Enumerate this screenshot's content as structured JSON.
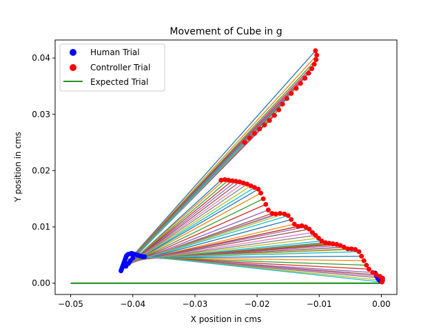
{
  "chart_data": {
    "type": "scatter",
    "title": "Movement of Cube in g",
    "xlabel": "X position in cms",
    "ylabel": "Y position in cms",
    "xlim": [
      -0.0525,
      0.0025
    ],
    "ylim": [
      -0.002,
      0.0432
    ],
    "x_ticks": [
      -0.05,
      -0.04,
      -0.03,
      -0.02,
      -0.01,
      0.0
    ],
    "y_ticks": [
      0.0,
      0.01,
      0.02,
      0.03,
      0.04
    ],
    "x_tick_labels": [
      "−0.05",
      "−0.04",
      "−0.03",
      "−0.02",
      "−0.01",
      "0.00"
    ],
    "y_tick_labels": [
      "0.00",
      "0.01",
      "0.02",
      "0.03",
      "0.04"
    ],
    "grid": false,
    "legend_position": "top-left",
    "legend": [
      {
        "label": "Human Trial",
        "kind": "marker",
        "color": "#0000ff"
      },
      {
        "label": "Controller Trial",
        "kind": "marker",
        "color": "#ff0000"
      },
      {
        "label": "Expected Trial",
        "kind": "line",
        "color": "#008000"
      }
    ],
    "line_colors": [
      "#1f77b4",
      "#ff7f0e",
      "#2ca02c",
      "#d62728",
      "#9467bd",
      "#8c564b",
      "#e377c2",
      "#7f7f7f",
      "#bcbd22",
      "#17becf"
    ],
    "human_trial": {
      "color": "#0000ff",
      "points": [
        [
          -0.0419,
          0.0022
        ],
        [
          -0.0418,
          0.0025
        ],
        [
          -0.0417,
          0.0028
        ],
        [
          -0.0416,
          0.0031
        ],
        [
          -0.0415,
          0.0034
        ],
        [
          -0.0414,
          0.0037
        ],
        [
          -0.0413,
          0.004
        ],
        [
          -0.0412,
          0.0043
        ],
        [
          -0.0411,
          0.0046
        ],
        [
          -0.041,
          0.0049
        ],
        [
          -0.0408,
          0.0051
        ],
        [
          -0.0405,
          0.0052
        ],
        [
          -0.0402,
          0.0053
        ],
        [
          -0.0399,
          0.0052
        ],
        [
          -0.0396,
          0.0051
        ],
        [
          -0.0393,
          0.005
        ],
        [
          -0.039,
          0.0049
        ],
        [
          -0.0387,
          0.0048
        ],
        [
          -0.0384,
          0.0047
        ],
        [
          -0.0381,
          0.0047
        ],
        [
          -0.0411,
          0.003
        ],
        [
          -0.0407,
          0.0035
        ],
        [
          -0.0404,
          0.004
        ],
        [
          -0.04,
          0.0045
        ],
        [
          -0.001,
          0.0018
        ],
        [
          -0.0008,
          0.0013
        ],
        [
          -0.0006,
          0.0009
        ],
        [
          -0.0004,
          0.0006
        ],
        [
          -0.0002,
          0.0004
        ],
        [
          0.0,
          0.0003
        ]
      ]
    },
    "controller_trial": {
      "color": "#ff0000",
      "points": [
        [
          -0.0106,
          0.0413
        ],
        [
          -0.0104,
          0.0405
        ],
        [
          -0.0105,
          0.0397
        ],
        [
          -0.0108,
          0.0389
        ],
        [
          -0.0112,
          0.0381
        ],
        [
          -0.0117,
          0.0373
        ],
        [
          -0.0123,
          0.0364
        ],
        [
          -0.013,
          0.0355
        ],
        [
          -0.0137,
          0.0346
        ],
        [
          -0.0145,
          0.0337
        ],
        [
          -0.0152,
          0.0328
        ],
        [
          -0.0159,
          0.0318
        ],
        [
          -0.0165,
          0.0308
        ],
        [
          -0.0172,
          0.0298
        ],
        [
          -0.018,
          0.0289
        ],
        [
          -0.0188,
          0.0281
        ],
        [
          -0.0196,
          0.0274
        ],
        [
          -0.0204,
          0.0266
        ],
        [
          -0.0212,
          0.0258
        ],
        [
          -0.022,
          0.025
        ],
        [
          -0.0258,
          0.0183
        ],
        [
          -0.0252,
          0.0184
        ],
        [
          -0.0246,
          0.0183
        ],
        [
          -0.024,
          0.0182
        ],
        [
          -0.0234,
          0.0181
        ],
        [
          -0.0228,
          0.018
        ],
        [
          -0.0222,
          0.0178
        ],
        [
          -0.0216,
          0.0176
        ],
        [
          -0.021,
          0.0173
        ],
        [
          -0.0204,
          0.017
        ],
        [
          -0.0198,
          0.0167
        ],
        [
          -0.0194,
          0.016
        ],
        [
          -0.019,
          0.015
        ],
        [
          -0.0186,
          0.014
        ],
        [
          -0.0182,
          0.013
        ],
        [
          -0.0176,
          0.0124
        ],
        [
          -0.017,
          0.0123
        ],
        [
          -0.0163,
          0.0124
        ],
        [
          -0.0156,
          0.0123
        ],
        [
          -0.015,
          0.012
        ],
        [
          -0.0145,
          0.0113
        ],
        [
          -0.014,
          0.0105
        ],
        [
          -0.0134,
          0.0101
        ],
        [
          -0.0128,
          0.0102
        ],
        [
          -0.0122,
          0.01
        ],
        [
          -0.0116,
          0.0096
        ],
        [
          -0.0111,
          0.009
        ],
        [
          -0.0106,
          0.0085
        ],
        [
          -0.0101,
          0.008
        ],
        [
          -0.0096,
          0.0075
        ],
        [
          -0.009,
          0.0072
        ],
        [
          -0.0084,
          0.0071
        ],
        [
          -0.0078,
          0.007
        ],
        [
          -0.0072,
          0.0069
        ],
        [
          -0.0066,
          0.0067
        ],
        [
          -0.006,
          0.0064
        ],
        [
          -0.0054,
          0.0061
        ],
        [
          -0.0048,
          0.0061
        ],
        [
          -0.0042,
          0.006
        ],
        [
          -0.0036,
          0.0056
        ],
        [
          -0.0032,
          0.0048
        ],
        [
          -0.0028,
          0.004
        ],
        [
          -0.0024,
          0.0032
        ],
        [
          -0.002,
          0.0025
        ],
        [
          -0.0014,
          0.0019
        ],
        [
          -0.0008,
          0.0015
        ],
        [
          -0.0002,
          0.0012
        ],
        [
          0.0002,
          0.0009
        ],
        [
          0.0002,
          0.0005
        ],
        [
          0.0001,
          0.0002
        ]
      ]
    },
    "expected_trial": {
      "color": "#008000",
      "x": [
        -0.05,
        0.0
      ],
      "y": [
        0.0,
        0.0
      ]
    },
    "connecting_lines": {
      "human_anchor_start": [
        -0.0419,
        0.0025
      ],
      "human_anchor_end": [
        -0.0382,
        0.0048
      ]
    }
  }
}
